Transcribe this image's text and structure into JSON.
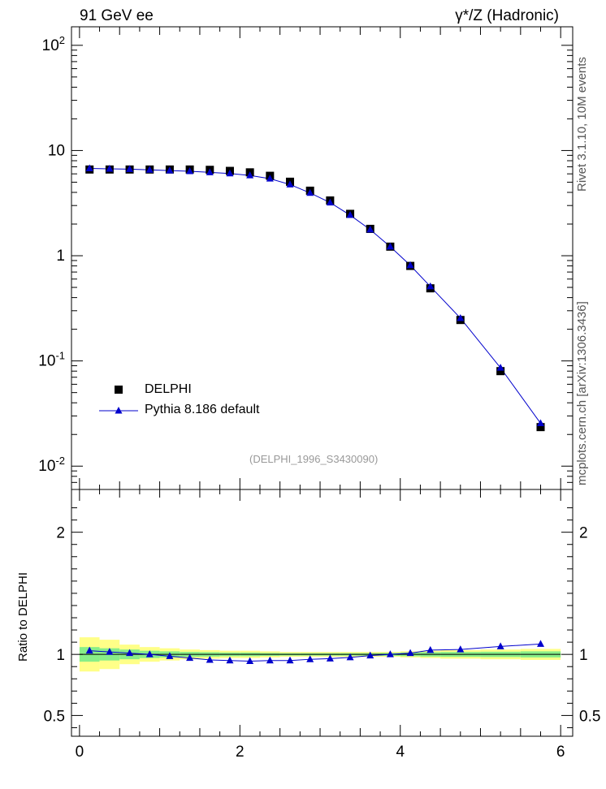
{
  "header": {
    "left_title": "91 GeV ee",
    "right_title": "γ*/Z (Hadronic)"
  },
  "side_text": {
    "rivet": "Rivet 3.1.10,  10M events",
    "mcplots": "mcplots.cern.ch [arXiv:1306.3436]"
  },
  "analysis_tag": "(DELPHI_1996_S3430090)",
  "legend": {
    "data_label": "DELPHI",
    "mc_label": "Pythia 8.186 default"
  },
  "colors": {
    "data": "#000000",
    "mc": "#0000cc",
    "band_outer": "#ffff88",
    "band_inner": "#88ee88"
  },
  "chart_data": [
    {
      "type": "scatter",
      "yscale": "log",
      "xlim": [
        -0.1,
        6.15
      ],
      "ylim": [
        0.006,
        150
      ],
      "ytick_labels": [
        "10^-2",
        "10^-1",
        "1",
        "10",
        "10^2"
      ],
      "legend_position": "bottom-left",
      "series": [
        {
          "name": "DELPHI",
          "x": [
            0.125,
            0.375,
            0.625,
            0.875,
            1.125,
            1.375,
            1.625,
            1.875,
            2.125,
            2.375,
            2.625,
            2.875,
            3.125,
            3.375,
            3.625,
            3.875,
            4.125,
            4.375,
            4.75,
            5.25,
            5.75
          ],
          "y": [
            6.6,
            6.6,
            6.6,
            6.6,
            6.6,
            6.6,
            6.55,
            6.4,
            6.2,
            5.75,
            5.05,
            4.15,
            3.35,
            2.5,
            1.8,
            1.22,
            0.8,
            0.49,
            0.245,
            0.08,
            0.0235
          ]
        },
        {
          "name": "Pythia 8.186 default",
          "x": [
            0.125,
            0.375,
            0.625,
            0.875,
            1.125,
            1.375,
            1.625,
            1.875,
            2.125,
            2.375,
            2.625,
            2.875,
            3.125,
            3.375,
            3.625,
            3.875,
            4.125,
            4.375,
            4.75,
            5.25,
            5.75
          ],
          "y": [
            6.75,
            6.7,
            6.65,
            6.55,
            6.45,
            6.35,
            6.2,
            6.05,
            5.8,
            5.4,
            4.75,
            3.95,
            3.2,
            2.43,
            1.77,
            1.22,
            0.81,
            0.51,
            0.255,
            0.086,
            0.0255
          ]
        }
      ]
    },
    {
      "type": "line",
      "xlim": [
        -0.1,
        6.15
      ],
      "ylim": [
        0.33,
        2.35
      ],
      "ylabel": "Ratio to DELPHI",
      "xtick_labels": [
        "0",
        "2",
        "4",
        "6"
      ],
      "ytick_labels": [
        "0.5",
        "1",
        "2"
      ],
      "series": [
        {
          "name": "Pythia 8.186 default",
          "x": [
            0.125,
            0.375,
            0.625,
            0.875,
            1.125,
            1.375,
            1.625,
            1.875,
            2.125,
            2.375,
            2.625,
            2.875,
            3.125,
            3.375,
            3.625,
            3.875,
            4.125,
            4.375,
            4.75,
            5.25,
            5.75
          ],
          "y": [
            1.03,
            1.02,
            1.01,
            1.0,
            0.985,
            0.97,
            0.955,
            0.95,
            0.945,
            0.95,
            0.95,
            0.96,
            0.965,
            0.975,
            0.99,
            1.0,
            1.01,
            1.035,
            1.04,
            1.065,
            1.085
          ]
        }
      ],
      "bands": {
        "x_edges": [
          0.0,
          0.25,
          0.5,
          0.75,
          1.0,
          1.25,
          1.5,
          1.75,
          2.0,
          2.25,
          2.5,
          2.75,
          3.0,
          3.25,
          3.5,
          3.75,
          4.0,
          4.25,
          4.5,
          5.0,
          5.5,
          6.0
        ],
        "outer": [
          0.14,
          0.12,
          0.08,
          0.06,
          0.05,
          0.04,
          0.035,
          0.03,
          0.03,
          0.025,
          0.02,
          0.02,
          0.02,
          0.02,
          0.02,
          0.02,
          0.025,
          0.03,
          0.035,
          0.04,
          0.045
        ],
        "inner": [
          0.06,
          0.05,
          0.04,
          0.03,
          0.025,
          0.02,
          0.018,
          0.015,
          0.015,
          0.012,
          0.01,
          0.01,
          0.01,
          0.01,
          0.01,
          0.012,
          0.015,
          0.018,
          0.02,
          0.022,
          0.025
        ]
      }
    }
  ]
}
